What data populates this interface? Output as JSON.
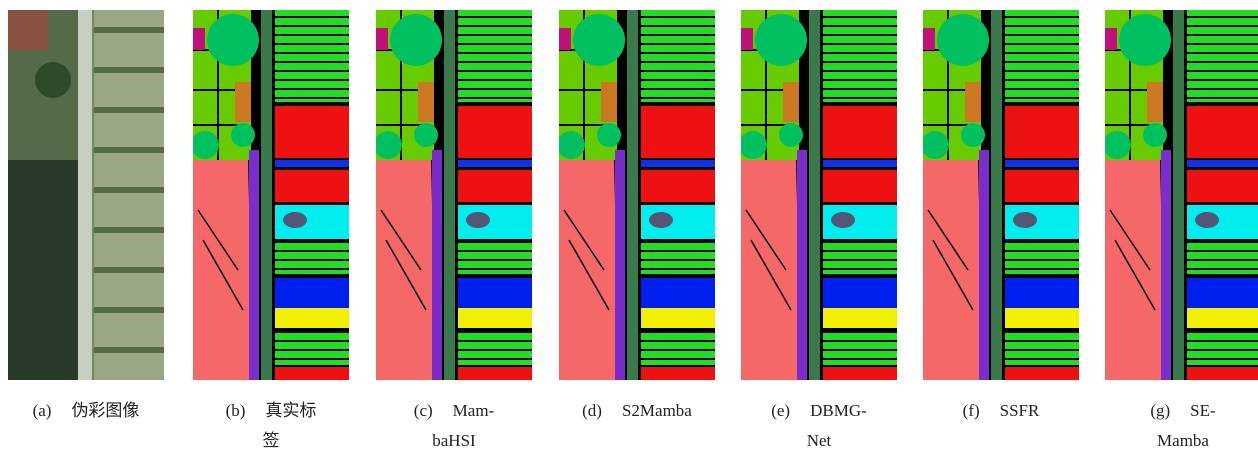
{
  "figure": {
    "panels": [
      {
        "label": "(a)",
        "caption": [
          "伪彩图像"
        ]
      },
      {
        "label": "(b)",
        "caption": [
          "真实标",
          "签"
        ]
      },
      {
        "label": "(c)",
        "caption": [
          "Mam-",
          "baHSI"
        ]
      },
      {
        "label": "(d)",
        "caption": [
          "S2Mamba"
        ]
      },
      {
        "label": "(e)",
        "caption": [
          "DBMG-",
          "Net"
        ]
      },
      {
        "label": "(f)",
        "caption": [
          "SSFR"
        ]
      },
      {
        "label": "(g)",
        "caption": [
          "SE-",
          "Mamba"
        ]
      }
    ]
  }
}
